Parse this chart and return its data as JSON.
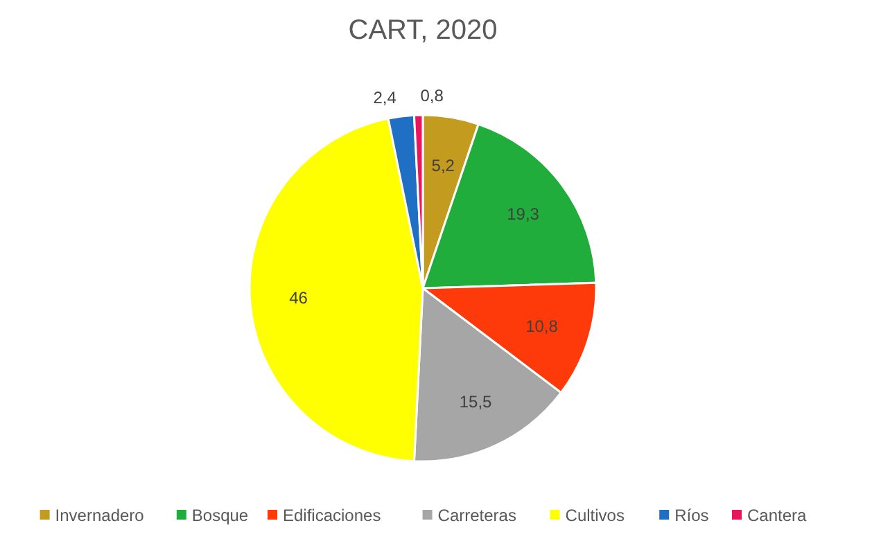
{
  "chart_data": {
    "type": "pie",
    "title": "CART, 2020",
    "categories": [
      "Invernadero",
      "Bosque",
      "Edificaciones",
      "Carreteras",
      "Cultivos",
      "Ríos",
      "Cantera"
    ],
    "values": [
      5.2,
      19.3,
      10.8,
      15.5,
      46,
      2.4,
      0.8
    ],
    "value_labels": [
      "5,2",
      "19,3",
      "10,8",
      "15,5",
      "46",
      "2,4",
      "0,8"
    ],
    "colors": [
      "#c39b1e",
      "#21ad3c",
      "#ff3a0a",
      "#a6a6a6",
      "#ffff00",
      "#1f6fc4",
      "#e8175d"
    ],
    "legend": "bottom"
  }
}
